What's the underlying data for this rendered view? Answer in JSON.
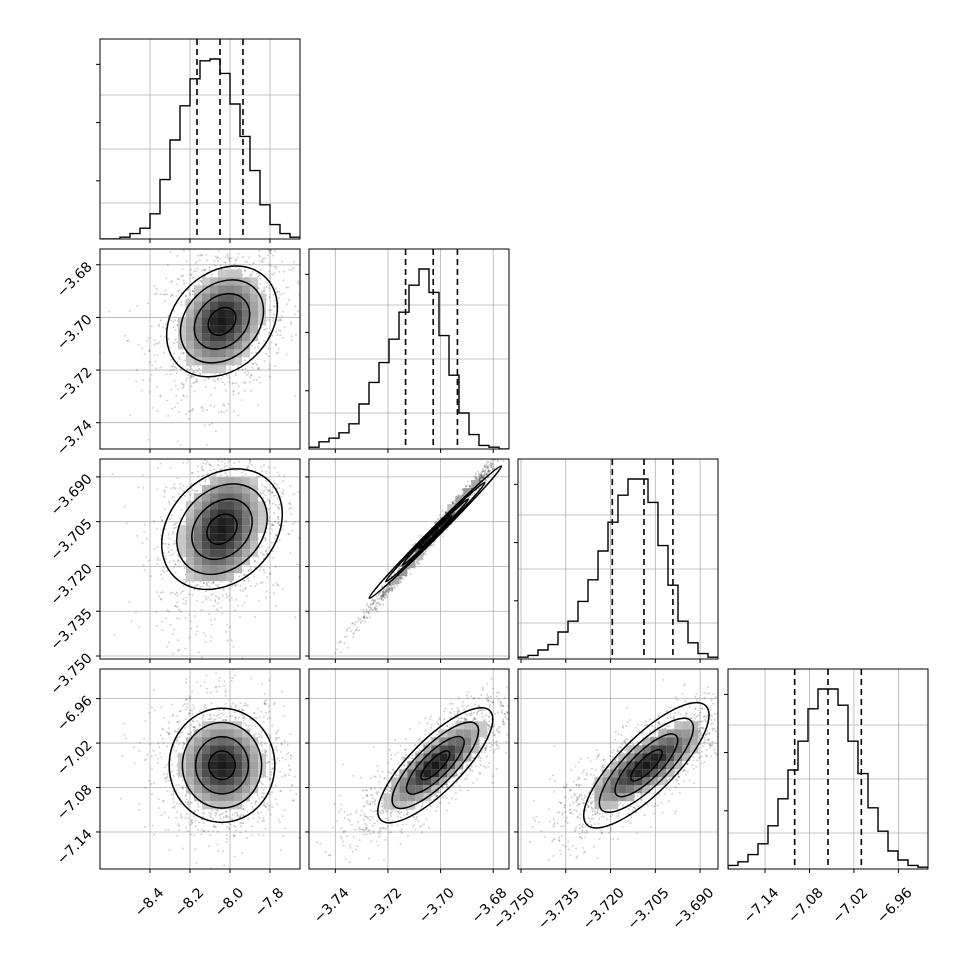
{
  "chart_data": {
    "type": "corner",
    "grid": true,
    "color": "#000000",
    "parameters": [
      {
        "range": [
          -8.65,
          -7.65
        ],
        "ticks": [
          -8.4,
          -8.2,
          -8.0,
          -7.8
        ],
        "tick_labels": [
          "−8.4",
          "−8.2",
          "−8.0",
          "−7.8"
        ]
      },
      {
        "range": [
          -3.75,
          -3.674
        ],
        "ticks": [
          -3.74,
          -3.72,
          -3.7,
          -3.68
        ],
        "tick_labels": [
          "−3.74",
          "−3.72",
          "−3.70",
          "−3.68"
        ]
      },
      {
        "range": [
          -3.751,
          -3.684
        ],
        "ticks": [
          -3.75,
          -3.735,
          -3.72,
          -3.705,
          -3.69
        ],
        "tick_labels": [
          "−3.750",
          "−3.735",
          "−3.720",
          "−3.705",
          "−3.690"
        ]
      },
      {
        "range": [
          -7.19,
          -6.92
        ],
        "ticks": [
          -7.14,
          -7.08,
          -7.02,
          -6.96
        ],
        "tick_labels": [
          "−7.14",
          "−7.08",
          "−7.02",
          "−6.96"
        ]
      }
    ],
    "histograms": [
      {
        "param": 0,
        "counts": [
          0,
          0,
          0.01,
          0.03,
          0.06,
          0.14,
          0.33,
          0.55,
          0.74,
          0.89,
          0.99,
          1.0,
          0.92,
          0.75,
          0.57,
          0.38,
          0.19,
          0.08,
          0.03,
          0.01
        ],
        "quantiles": [
          -8.165,
          -8.05,
          -7.935
        ]
      },
      {
        "param": 1,
        "counts": [
          0.01,
          0.04,
          0.06,
          0.09,
          0.14,
          0.25,
          0.37,
          0.48,
          0.61,
          0.76,
          0.91,
          1.0,
          0.87,
          0.63,
          0.41,
          0.2,
          0.08,
          0.02,
          0.01,
          0
        ],
        "quantiles": [
          -3.7133,
          -3.7028,
          -3.6936
        ]
      },
      {
        "param": 2,
        "counts": [
          0.01,
          0.02,
          0.05,
          0.08,
          0.15,
          0.21,
          0.32,
          0.44,
          0.6,
          0.76,
          0.91,
          1.0,
          1.0,
          0.87,
          0.63,
          0.41,
          0.21,
          0.09,
          0.03,
          0.01
        ],
        "quantiles": [
          -3.7194,
          -3.7088,
          -3.6991
        ]
      },
      {
        "param": 3,
        "counts": [
          0.02,
          0.04,
          0.08,
          0.14,
          0.24,
          0.39,
          0.55,
          0.71,
          0.89,
          1.0,
          1.0,
          0.91,
          0.71,
          0.53,
          0.34,
          0.21,
          0.1,
          0.05,
          0.02,
          0.01
        ],
        "quantiles": [
          -7.1,
          -7.055,
          -7.01
        ]
      }
    ],
    "pairs": [
      {
        "row": 1,
        "col": 0,
        "center": [
          -8.04,
          -3.7015
        ],
        "sd": [
          0.12,
          0.011
        ],
        "rho": 0.25,
        "scatter": [
          -8.35,
          -7.75,
          -3.735,
          -3.676
        ]
      },
      {
        "row": 2,
        "col": 0,
        "center": [
          -8.04,
          -3.7075
        ],
        "sd": [
          0.12,
          0.0115
        ],
        "rho": 0.25,
        "scatter": [
          -8.35,
          -7.75,
          -3.745,
          -3.686
        ]
      },
      {
        "row": 2,
        "col": 1,
        "center": [
          -3.702,
          -3.7085
        ],
        "sd": [
          0.011,
          0.0115
        ],
        "rho": 0.995,
        "scatter": [
          -3.748,
          -3.676,
          -3.75,
          -3.684
        ]
      },
      {
        "row": 3,
        "col": 0,
        "center": [
          -8.04,
          -7.05
        ],
        "sd": [
          0.12,
          0.035
        ],
        "rho": 0.0,
        "scatter": [
          -8.35,
          -7.75,
          -7.17,
          -6.94
        ]
      },
      {
        "row": 3,
        "col": 1,
        "center": [
          -3.702,
          -7.05
        ],
        "sd": [
          0.011,
          0.035
        ],
        "rho": 0.8,
        "scatter": [
          -3.74,
          -3.68,
          -7.17,
          -6.94
        ]
      },
      {
        "row": 3,
        "col": 2,
        "center": [
          -3.708,
          -7.05
        ],
        "sd": [
          0.0115,
          0.035
        ],
        "rho": 0.8,
        "scatter": [
          -3.745,
          -3.688,
          -7.17,
          -6.94
        ]
      }
    ],
    "contour_levels_sigma": [
      0.5,
      1.0,
      1.5,
      2.0
    ]
  }
}
